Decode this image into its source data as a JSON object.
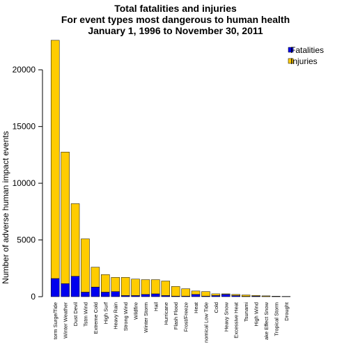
{
  "chart_data": {
    "type": "bar",
    "stacked": true,
    "title": "Total fatalities and injuries",
    "subtitle": "For event types most dangerous to human health",
    "date_range": "January 1, 1996 to November 30, 2011",
    "xlabel": "",
    "ylabel": "Number of adverse human impact events",
    "ylim": [
      0,
      22500
    ],
    "yticks": [
      0,
      5000,
      10000,
      15000,
      20000
    ],
    "ytick_labels": [
      "0",
      "5000",
      "10000",
      "15000",
      "20000"
    ],
    "grid": false,
    "legend_position": "top-right",
    "categories": [
      "Storm Surge/Tide",
      "Winter Weather",
      "Dust Devil",
      "Tstm Wind",
      "Extreme Cold",
      "High Surf",
      "Heavy Rain",
      "Strong Wind",
      "Wildfire",
      "Winter Storm",
      "Hail",
      "Hurricane",
      "Flash Flood",
      "Frost/Freeze",
      "Heat",
      "Astronomical Low Tide",
      "Cold",
      "Heavy Snow",
      "Excessive Heat",
      "Tsunami",
      "High Wind",
      "Lake-Effect Snow",
      "Tropical Storm",
      "Drought"
    ],
    "category_labels": [
      "torm Surge/Tide",
      "Winter Weather",
      "Dust Devil",
      "Tstm Wind",
      "Extreme Cold",
      "High Surf",
      "Heavy Rain",
      "Strong Wind",
      "Wildfire",
      "Winter Storm",
      "Hail",
      "Hurricane",
      "Flash Flood",
      "Frost/Freeze",
      "Heat",
      "nomical Low Tide",
      "Cold",
      "Heavy Snow",
      "Excessive Heat",
      "Tsunami",
      "High Wind",
      "ake Effect Snow",
      "Tropical Storm",
      "Drought"
    ],
    "series": [
      {
        "name": "Fatalities",
        "color": "#0000ee",
        "values": [
          1600,
          1150,
          1800,
          400,
          850,
          400,
          450,
          100,
          100,
          200,
          250,
          100,
          50,
          50,
          200,
          50,
          100,
          200,
          100,
          30,
          50,
          20,
          10,
          5
        ]
      },
      {
        "name": "Injuries",
        "color": "#ffcc00",
        "values": [
          21000,
          11600,
          6400,
          4700,
          1750,
          1550,
          1250,
          1600,
          1450,
          1300,
          1250,
          1280,
          850,
          650,
          300,
          400,
          150,
          50,
          100,
          120,
          60,
          50,
          30,
          20
        ]
      }
    ]
  }
}
